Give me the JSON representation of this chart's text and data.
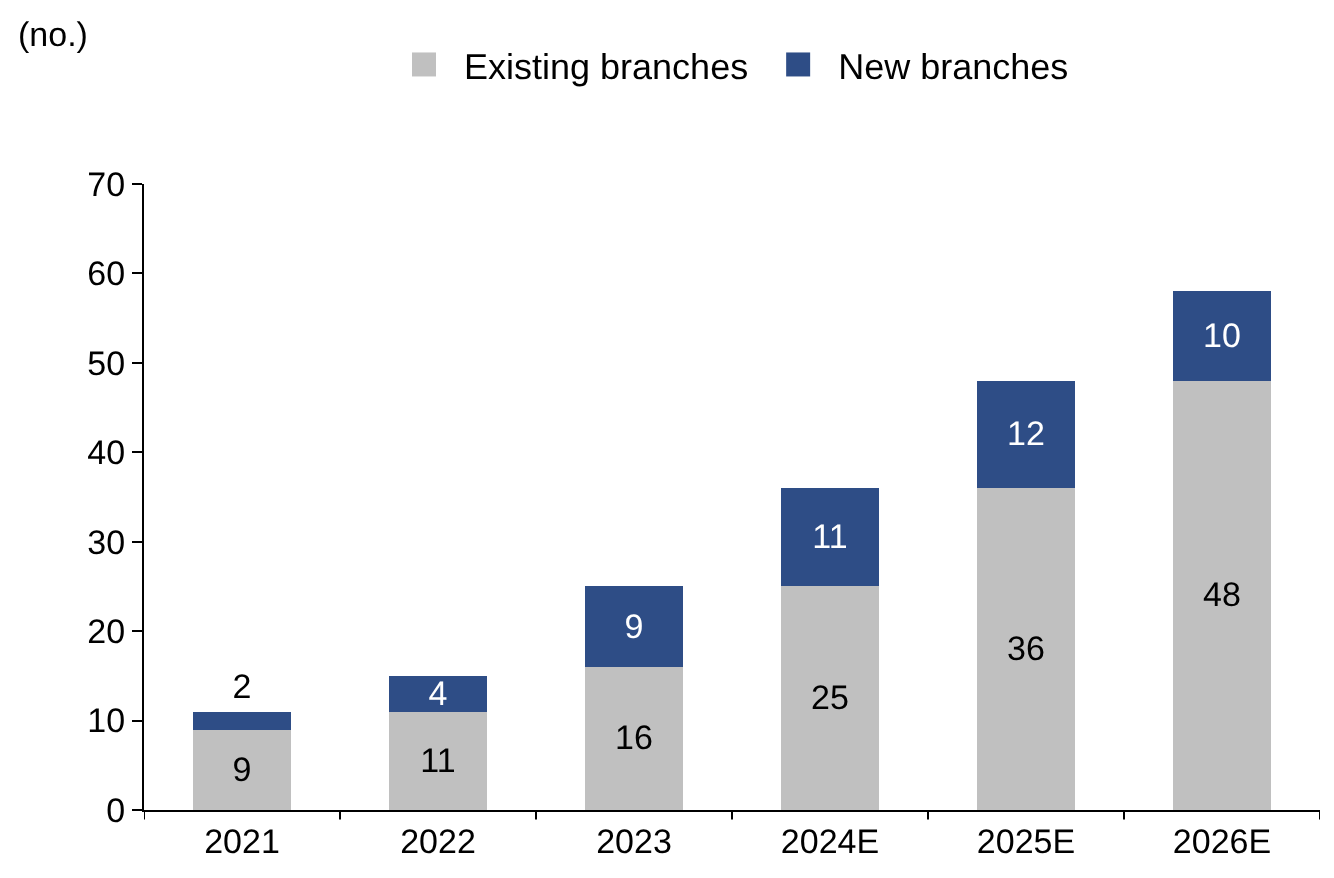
{
  "chart_data": {
    "type": "bar",
    "stacked": true,
    "ylabel": "(no.)",
    "categories": [
      "2021",
      "2022",
      "2023",
      "2024E",
      "2025E",
      "2026E"
    ],
    "series": [
      {
        "name": "Existing branches",
        "color": "#c0c0c0",
        "values": [
          9,
          11,
          16,
          25,
          36,
          48
        ]
      },
      {
        "name": "New branches",
        "color": "#2e4d86",
        "values": [
          2,
          4,
          9,
          11,
          12,
          10
        ]
      }
    ],
    "ylim": [
      0,
      70
    ],
    "yticks": [
      0,
      10,
      20,
      30,
      40,
      50,
      60,
      70
    ],
    "grid": false,
    "legend": "top",
    "data_labels": true
  }
}
